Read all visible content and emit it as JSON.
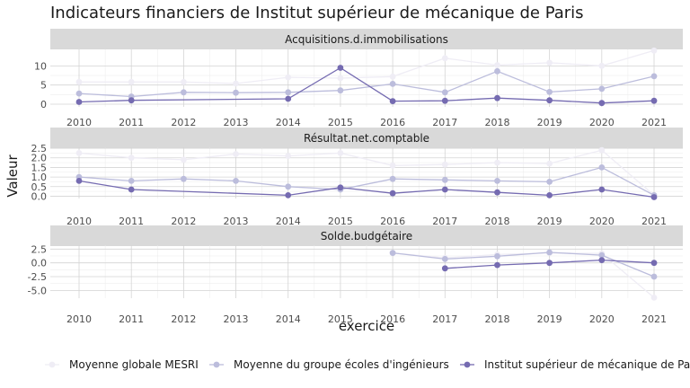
{
  "chart_data": {
    "type": "line",
    "title": "Indicateurs financiers de Institut supérieur de mécanique de Paris",
    "xlabel": "exercice",
    "ylabel": "Valeur",
    "x": [
      2010,
      2011,
      2012,
      2013,
      2014,
      2015,
      2016,
      2017,
      2018,
      2019,
      2020,
      2021
    ],
    "legend_position": "bottom",
    "grid": true,
    "series_names": [
      "Moyenne globale MESRI",
      "Moyenne du groupe écoles d'ingénieurs",
      "Institut supérieur de mécanique de Paris"
    ],
    "series_colors": [
      "#efedf5",
      "#bcbddc",
      "#756bb1"
    ],
    "panels": [
      {
        "label": "Acquisitions.d.immobilisations",
        "yticks": [
          0,
          5,
          10
        ],
        "ylim": [
          -0.7,
          14.3
        ],
        "series": [
          {
            "name": "Moyenne globale MESRI",
            "values": [
              5.8,
              5.8,
              5.8,
              5.4,
              7.0,
              6.8,
              7.2,
              12.0,
              10.2,
              10.8,
              10.0,
              14.0
            ]
          },
          {
            "name": "Moyenne du groupe écoles d'ingénieurs",
            "values": [
              2.8,
              2.0,
              3.1,
              3.0,
              3.1,
              3.6,
              5.3,
              3.1,
              8.6,
              3.2,
              4.0,
              7.3
            ]
          },
          {
            "name": "Institut supérieur de mécanique de Paris",
            "values": [
              0.6,
              1.0,
              null,
              null,
              1.4,
              9.5,
              0.8,
              0.9,
              1.6,
              1.0,
              0.3,
              0.9
            ]
          }
        ]
      },
      {
        "label": "Résultat.net.comptable",
        "yticks": [
          0.0,
          0.5,
          1.0,
          1.5,
          2.0,
          2.5
        ],
        "yticklabels": [
          "0.0",
          "0.5",
          "1.0",
          "1.5",
          "2.0",
          "2.5"
        ],
        "ylim": [
          -0.12,
          2.55
        ],
        "series": [
          {
            "name": "Moyenne globale MESRI",
            "values": [
              2.25,
              2.0,
              1.9,
              2.2,
              2.1,
              2.25,
              1.6,
              1.65,
              1.75,
              1.7,
              2.4,
              0.05
            ]
          },
          {
            "name": "Moyenne du groupe écoles d'ingénieurs",
            "values": [
              1.0,
              0.8,
              0.9,
              0.8,
              0.5,
              0.35,
              0.9,
              0.85,
              0.8,
              0.75,
              1.5,
              0.05
            ]
          },
          {
            "name": "Institut supérieur de mécanique de Paris",
            "values": [
              0.8,
              0.35,
              null,
              null,
              0.05,
              0.45,
              0.15,
              0.35,
              0.2,
              0.05,
              0.35,
              -0.05
            ]
          }
        ]
      },
      {
        "label": "Solde.budgétaire",
        "yticks": [
          -5.0,
          -2.5,
          0.0,
          2.5
        ],
        "yticklabels": [
          "-5.0",
          "-2.5",
          "0.0",
          "2.5"
        ],
        "ylim": [
          -6.4,
          3.2
        ],
        "series": [
          {
            "name": "Moyenne globale MESRI",
            "values": [
              null,
              null,
              null,
              null,
              null,
              null,
              1.8,
              0.9,
              1.5,
              1.8,
              1.7,
              -6.3
            ]
          },
          {
            "name": "Moyenne du groupe écoles d'ingénieurs",
            "values": [
              null,
              null,
              null,
              null,
              null,
              null,
              1.8,
              0.7,
              1.2,
              1.9,
              1.4,
              -2.5
            ]
          },
          {
            "name": "Institut supérieur de mécanique de Paris",
            "values": [
              null,
              null,
              null,
              null,
              null,
              null,
              null,
              -1.0,
              -0.4,
              0.0,
              0.5,
              0.0
            ]
          }
        ]
      }
    ]
  }
}
